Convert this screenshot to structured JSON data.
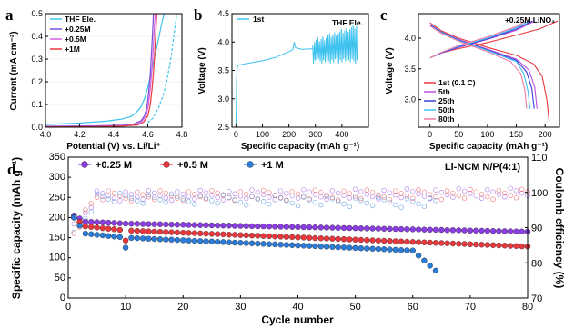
{
  "chart_data": [
    {
      "panel": "a",
      "type": "line",
      "xlabel": "Potential (V) vs. Li/Li⁺",
      "ylabel": "Current (mA cm⁻²)",
      "xlim": [
        4.0,
        4.8
      ],
      "ylim": [
        0,
        0.5
      ],
      "xticks": [
        "4.0",
        "4.2",
        "4.4",
        "4.6",
        "4.8"
      ],
      "yticks": [
        "0.0",
        "0.1",
        "0.2",
        "0.3",
        "0.4",
        "0.5"
      ],
      "legend_position": "top-left",
      "series": [
        {
          "name": "THF Ele.",
          "color": "#3ec3ee",
          "points": [
            [
              4.0,
              0.012
            ],
            [
              4.2,
              0.018
            ],
            [
              4.35,
              0.026
            ],
            [
              4.45,
              0.036
            ],
            [
              4.5,
              0.047
            ],
            [
              4.53,
              0.063
            ],
            [
              4.56,
              0.09
            ],
            [
              4.58,
              0.125
            ],
            [
              4.6,
              0.175
            ],
            [
              4.62,
              0.24
            ],
            [
              4.64,
              0.31
            ],
            [
              4.66,
              0.38
            ],
            [
              4.68,
              0.45
            ],
            [
              4.695,
              0.5
            ]
          ]
        },
        {
          "name": "+0.25M",
          "color": "#7b4fd8",
          "points": [
            [
              4.0,
              0.004
            ],
            [
              4.3,
              0.006
            ],
            [
              4.45,
              0.009
            ],
            [
              4.52,
              0.015
            ],
            [
              4.56,
              0.028
            ],
            [
              4.58,
              0.05
            ],
            [
              4.595,
              0.09
            ],
            [
              4.605,
              0.15
            ],
            [
              4.615,
              0.24
            ],
            [
              4.622,
              0.33
            ],
            [
              4.628,
              0.42
            ],
            [
              4.633,
              0.5
            ]
          ]
        },
        {
          "name": "+0.5M",
          "color": "#d65fe0",
          "points": [
            [
              4.0,
              0.002
            ],
            [
              4.3,
              0.004
            ],
            [
              4.45,
              0.006
            ],
            [
              4.53,
              0.012
            ],
            [
              4.565,
              0.025
            ],
            [
              4.59,
              0.05
            ],
            [
              4.605,
              0.1
            ],
            [
              4.615,
              0.17
            ],
            [
              4.625,
              0.26
            ],
            [
              4.632,
              0.35
            ],
            [
              4.638,
              0.43
            ],
            [
              4.643,
              0.5
            ]
          ]
        },
        {
          "name": "+1M",
          "color": "#e8383e",
          "points": [
            [
              4.0,
              0.001
            ],
            [
              4.3,
              0.003
            ],
            [
              4.45,
              0.005
            ],
            [
              4.54,
              0.01
            ],
            [
              4.575,
              0.022
            ],
            [
              4.6,
              0.05
            ],
            [
              4.615,
              0.1
            ],
            [
              4.625,
              0.17
            ],
            [
              4.635,
              0.26
            ],
            [
              4.642,
              0.35
            ],
            [
              4.648,
              0.43
            ],
            [
              4.652,
              0.5
            ]
          ]
        },
        {
          "name": "",
          "color": "#3ec3ee",
          "dashed": true,
          "points": [
            [
              4.6,
              0.02
            ],
            [
              4.63,
              0.04
            ],
            [
              4.66,
              0.08
            ],
            [
              4.69,
              0.14
            ],
            [
              4.71,
              0.2
            ],
            [
              4.73,
              0.28
            ],
            [
              4.745,
              0.36
            ],
            [
              4.76,
              0.44
            ],
            [
              4.77,
              0.5
            ]
          ]
        }
      ]
    },
    {
      "panel": "b",
      "type": "line",
      "xlabel": "Specific capacity (mAh g⁻¹)",
      "ylabel": "Voltage (V)",
      "xlim": [
        -15,
        500
      ],
      "ylim": [
        2.5,
        4.5
      ],
      "xticks": [
        0,
        100,
        200,
        300,
        400
      ],
      "yticks": [
        "2.5",
        "3.0",
        "3.5",
        "4.0",
        "4.5"
      ],
      "annotation": "THF Ele.",
      "legend_position": "top-left",
      "series": [
        {
          "name": "1st",
          "color": "#3ec3ee",
          "base": [
            [
              0,
              2.55
            ],
            [
              3,
              3.4
            ],
            [
              6,
              3.58
            ],
            [
              15,
              3.6
            ],
            [
              50,
              3.63
            ],
            [
              100,
              3.67
            ],
            [
              150,
              3.73
            ],
            [
              200,
              3.83
            ],
            [
              215,
              3.87
            ],
            [
              220,
              4.0
            ],
            [
              225,
              3.9
            ],
            [
              250,
              3.87
            ],
            [
              280,
              3.88
            ],
            [
              290,
              3.88
            ]
          ],
          "oscillation": {
            "x_start": 290,
            "x_end": 455,
            "high_start": 4.0,
            "high_end": 4.28,
            "low": 3.62
          }
        }
      ]
    },
    {
      "panel": "c",
      "type": "line",
      "xlabel": "Specific capacity (mAh g⁻¹)",
      "ylabel": "Voltage (V)",
      "xlim": [
        -20,
        225
      ],
      "ylim": [
        2.55,
        4.4
      ],
      "xticks": [
        0,
        50,
        100,
        150,
        200
      ],
      "yticks": [
        "3.0",
        "3.5",
        "4.0"
      ],
      "annotation": "+0.25M LiNO₃",
      "legend_position": "bottom-left",
      "series": [
        {
          "name": "1st (0.1 C)",
          "color": "#e8383e",
          "charge": [
            [
              0,
              3.68
            ],
            [
              20,
              3.76
            ],
            [
              50,
              3.83
            ],
            [
              100,
              3.93
            ],
            [
              150,
              4.05
            ],
            [
              190,
              4.15
            ],
            [
              222,
              4.28
            ]
          ],
          "discharge": [
            [
              0,
              4.25
            ],
            [
              20,
              4.12
            ],
            [
              50,
              4.0
            ],
            [
              100,
              3.85
            ],
            [
              150,
              3.72
            ],
            [
              180,
              3.58
            ],
            [
              195,
              3.38
            ],
            [
              203,
              3.0
            ],
            [
              207,
              2.65
            ]
          ]
        },
        {
          "name": "5th",
          "color": "#b94ee3",
          "charge": [
            [
              0,
              3.68
            ],
            [
              20,
              3.76
            ],
            [
              50,
              3.85
            ],
            [
              100,
              3.98
            ],
            [
              150,
              4.13
            ],
            [
              182,
              4.28
            ]
          ],
          "discharge": [
            [
              0,
              4.22
            ],
            [
              20,
              4.1
            ],
            [
              50,
              3.98
            ],
            [
              100,
              3.82
            ],
            [
              150,
              3.66
            ],
            [
              172,
              3.48
            ],
            [
              182,
              3.2
            ],
            [
              186,
              2.85
            ]
          ]
        },
        {
          "name": "25th",
          "color": "#3a3fd6",
          "charge": [
            [
              0,
              3.68
            ],
            [
              20,
              3.76
            ],
            [
              50,
              3.86
            ],
            [
              100,
              3.99
            ],
            [
              150,
              4.15
            ],
            [
              178,
              4.28
            ]
          ],
          "discharge": [
            [
              0,
              4.22
            ],
            [
              20,
              4.1
            ],
            [
              50,
              3.97
            ],
            [
              100,
              3.81
            ],
            [
              150,
              3.64
            ],
            [
              168,
              3.45
            ],
            [
              177,
              3.18
            ],
            [
              181,
              2.85
            ]
          ]
        },
        {
          "name": "50th",
          "color": "#3ec3ee",
          "charge": [
            [
              0,
              3.68
            ],
            [
              20,
              3.77
            ],
            [
              50,
              3.87
            ],
            [
              100,
              4.0
            ],
            [
              150,
              4.17
            ],
            [
              172,
              4.28
            ]
          ],
          "discharge": [
            [
              0,
              4.2
            ],
            [
              20,
              4.09
            ],
            [
              50,
              3.96
            ],
            [
              100,
              3.8
            ],
            [
              150,
              3.62
            ],
            [
              163,
              3.42
            ],
            [
              170,
              3.15
            ],
            [
              174,
              2.85
            ]
          ]
        },
        {
          "name": "80th",
          "color": "#f07aa5",
          "charge": [
            [
              0,
              3.68
            ],
            [
              20,
              3.77
            ],
            [
              50,
              3.88
            ],
            [
              100,
              4.02
            ],
            [
              150,
              4.19
            ],
            [
              166,
              4.28
            ]
          ],
          "discharge": [
            [
              0,
              4.2
            ],
            [
              20,
              4.08
            ],
            [
              50,
              3.95
            ],
            [
              100,
              3.78
            ],
            [
              140,
              3.62
            ],
            [
              158,
              3.42
            ],
            [
              165,
              3.15
            ],
            [
              168,
              2.85
            ]
          ]
        }
      ]
    },
    {
      "panel": "d",
      "type": "scatter",
      "xlabel": "Cycle number",
      "ylabel": "Specific capacity (mAh g⁻¹)",
      "y2label": "Coulomb efficiency (%)",
      "xlim": [
        0,
        80
      ],
      "ylim": [
        0,
        350
      ],
      "y2lim": [
        70,
        110
      ],
      "xticks": [
        0,
        10,
        20,
        30,
        40,
        50,
        60,
        70,
        80
      ],
      "yticks": [
        0,
        50,
        100,
        150,
        200,
        250,
        300,
        350
      ],
      "y2ticks": [
        70,
        80,
        90,
        100,
        110
      ],
      "annotation": "Li-NCM  N/P(4:1)",
      "legend_position": "top-left",
      "series": [
        {
          "name": "+0.25 M",
          "color": "#8a3de0",
          "cycles": 80,
          "capacity": {
            "start": 205,
            "c3": 190,
            "c10": 185,
            "c80": 165
          },
          "ce": {
            "start": 90,
            "c5": 99,
            "c80": 99.8
          }
        },
        {
          "name": "+0.5 M",
          "color": "#e8383e",
          "cycles": 80,
          "capacity": {
            "start": 200,
            "c3": 178,
            "c10": 168,
            "c80": 128
          },
          "ce": {
            "start": 89,
            "c5": 99,
            "c80": 99.5
          }
        },
        {
          "name": "+1 M",
          "color": "#2c7bd6",
          "cycles": 64,
          "capacity": {
            "start": 200,
            "c3": 160,
            "c10": 150,
            "c60": 118,
            "c64": 68
          },
          "ce": {
            "start": 88,
            "c5": 98.5,
            "c64": 97
          }
        }
      ]
    }
  ]
}
